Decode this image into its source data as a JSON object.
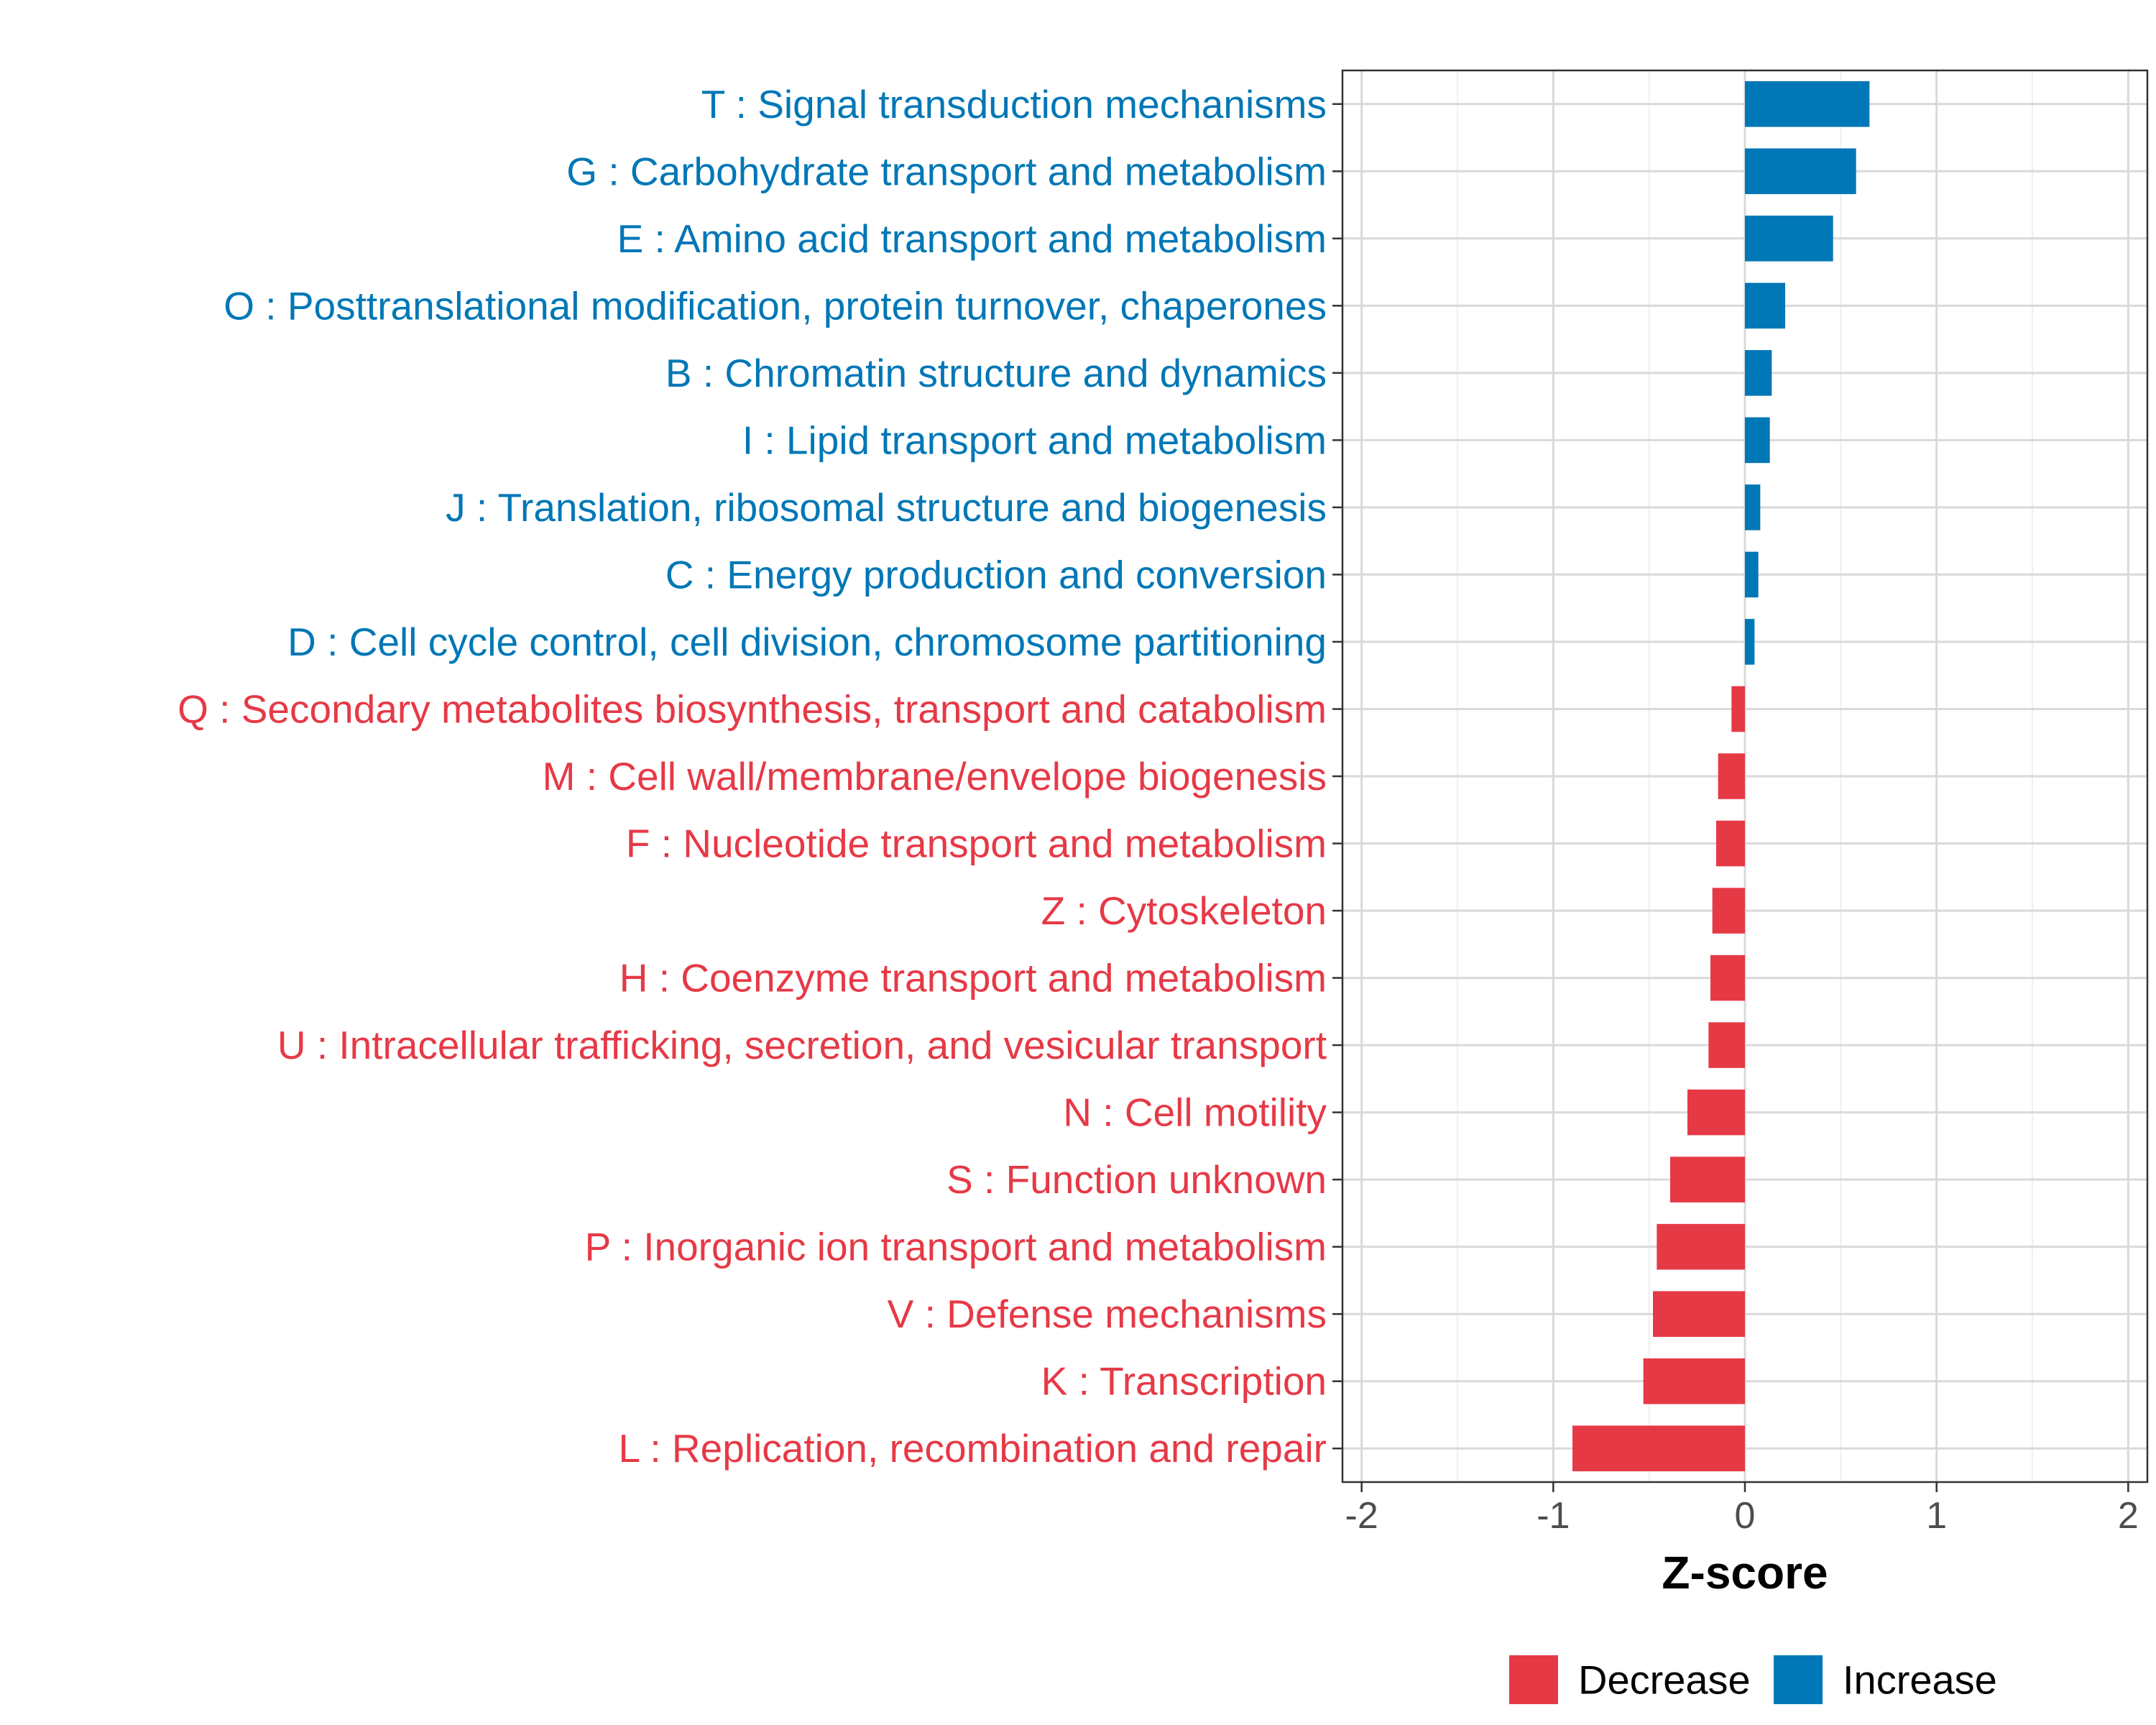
{
  "chart_data": {
    "type": "bar",
    "orientation": "horizontal",
    "title": "",
    "xlabel": "Z-score",
    "ylabel": "",
    "xlim": [
      -2.1,
      2.1
    ],
    "xticks": [
      -2,
      -1,
      0,
      1,
      2
    ],
    "xtick_labels": [
      "-2",
      "-1",
      "0",
      "1",
      "2"
    ],
    "grid": true,
    "legend_position": "bottom",
    "colors": {
      "Decrease": "#e63946",
      "Increase": "#0077b6"
    },
    "legend": [
      {
        "name": "Decrease",
        "label": "Decrease"
      },
      {
        "name": "Increase",
        "label": "Increase"
      }
    ],
    "categories": [
      "T : Signal transduction mechanisms",
      "G : Carbohydrate transport and metabolism",
      "E : Amino acid transport and metabolism",
      "O : Posttranslational modification, protein turnover, chaperones",
      "B : Chromatin structure and dynamics",
      "I : Lipid transport and metabolism",
      "J : Translation, ribosomal structure and biogenesis",
      "C : Energy production and conversion",
      "D : Cell cycle control, cell division, chromosome partitioning",
      "Q : Secondary metabolites biosynthesis, transport and catabolism",
      "M : Cell wall/membrane/envelope biogenesis",
      "F : Nucleotide transport and metabolism",
      "Z : Cytoskeleton",
      "H : Coenzyme transport and metabolism",
      "U : Intracellular trafficking, secretion, and vesicular transport",
      "N : Cell motility",
      "S : Function unknown",
      "P : Inorganic ion transport and metabolism",
      "V : Defense mechanisms",
      "K : Transcription",
      "L : Replication, recombination and repair"
    ],
    "values": [
      0.65,
      0.58,
      0.46,
      0.21,
      0.14,
      0.13,
      0.08,
      0.07,
      0.05,
      -0.07,
      -0.14,
      -0.15,
      -0.17,
      -0.18,
      -0.19,
      -0.3,
      -0.39,
      -0.46,
      -0.48,
      -0.53,
      -0.9
    ],
    "groups": [
      "Increase",
      "Increase",
      "Increase",
      "Increase",
      "Increase",
      "Increase",
      "Increase",
      "Increase",
      "Increase",
      "Decrease",
      "Decrease",
      "Decrease",
      "Decrease",
      "Decrease",
      "Decrease",
      "Decrease",
      "Decrease",
      "Decrease",
      "Decrease",
      "Decrease",
      "Decrease"
    ]
  }
}
